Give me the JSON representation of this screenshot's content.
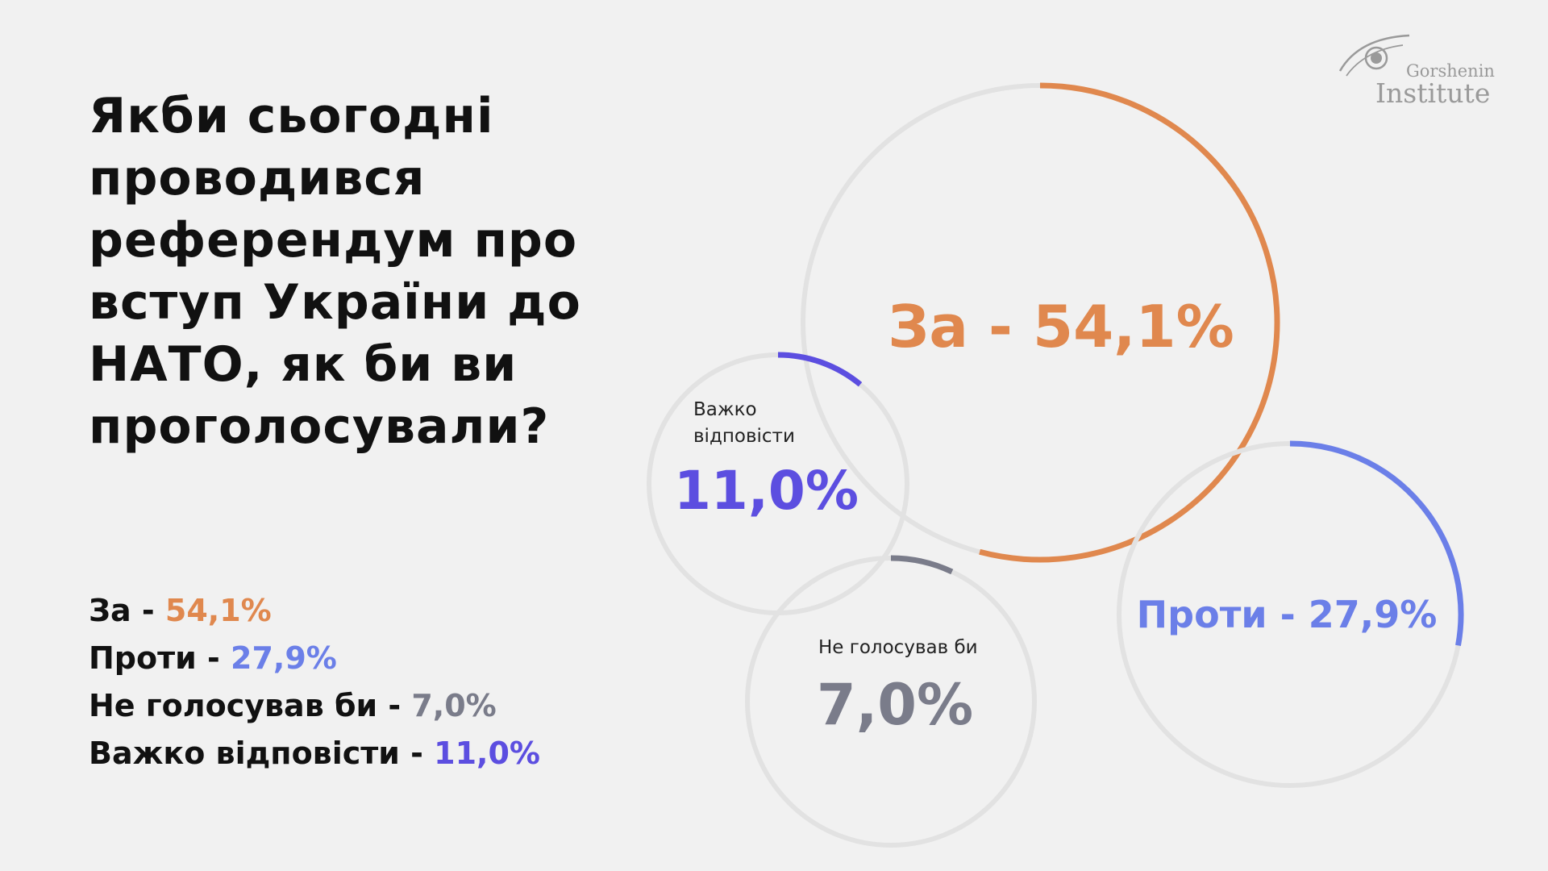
{
  "title": "Якби сьогодні проводився референдум про вступ України до НАТО, як би ви проголосували?",
  "logo": {
    "line1": "Gorshenin",
    "line2": "Institute"
  },
  "chart_data": {
    "type": "bubble",
    "title": "",
    "unit": "%",
    "series": [
      {
        "key": "za",
        "label": "За",
        "value": 54.1,
        "display": "54,1%",
        "color": "#e0884e",
        "bubble_text": "За - 54,1%"
      },
      {
        "key": "proty",
        "label": "Проти",
        "value": 27.9,
        "display": "27,9%",
        "color": "#6b7fe8",
        "bubble_text": "Проти - 27,9%"
      },
      {
        "key": "ne_holosuvav",
        "label": "Не голосував би",
        "value": 7.0,
        "display": "7,0%",
        "color": "#7a7c8a",
        "bubble_caption": "Не голосував би",
        "bubble_value": "7,0%"
      },
      {
        "key": "vazhko",
        "label": "Важко відповісти",
        "value": 11.0,
        "display": "11,0%",
        "color": "#5c4ee0",
        "bubble_caption_lines": [
          "Важко",
          "відповісти"
        ],
        "bubble_value": "11,0%"
      }
    ]
  },
  "legend": [
    {
      "label": "За",
      "separator": " - ",
      "value": "54,1%",
      "color": "#e0884e"
    },
    {
      "label": "Проти",
      "separator": " - ",
      "value": "27,9%",
      "color": "#6b7fe8"
    },
    {
      "label": "Не голосував би",
      "separator": " - ",
      "value": "7,0%",
      "color": "#7a7c8a"
    },
    {
      "label": "Важко відповісти",
      "separator": " - ",
      "value": "11,0%",
      "color": "#5c4ee0"
    }
  ],
  "colors": {
    "background": "#f1f1f1",
    "ring": "#e2e2e2",
    "text": "#111111",
    "logo": "#9a9a9a"
  }
}
